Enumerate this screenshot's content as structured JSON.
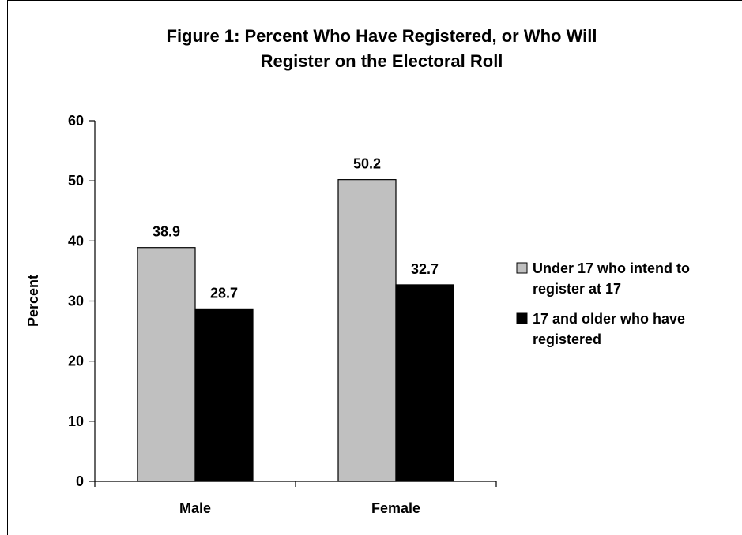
{
  "chart_data": {
    "type": "bar",
    "title": "Figure 1: Percent Who Have Registered, or Who Will Register on the Electoral Roll",
    "title_lines": [
      "Figure 1: Percent Who Have Registered, or Who Will",
      "Register on the Electoral Roll"
    ],
    "xlabel": "",
    "ylabel": "Percent",
    "ylim": [
      0,
      60
    ],
    "yticks": [
      0,
      10,
      20,
      30,
      40,
      50,
      60
    ],
    "grid": false,
    "legend_position": "right",
    "categories": [
      "Male",
      "Female"
    ],
    "series": [
      {
        "name": "Under 17 who intend to register at 17",
        "legend_lines": [
          "Under 17 who intend to",
          "register at 17"
        ],
        "color": "#c0c0c0",
        "values": [
          38.9,
          50.2
        ],
        "labels": [
          "38.9",
          "50.2"
        ]
      },
      {
        "name": "17 and older who have registered",
        "legend_lines": [
          "17 and older who have",
          "registered"
        ],
        "color": "#000000",
        "values": [
          28.7,
          32.7
        ],
        "labels": [
          "28.7",
          "32.7"
        ]
      }
    ]
  }
}
